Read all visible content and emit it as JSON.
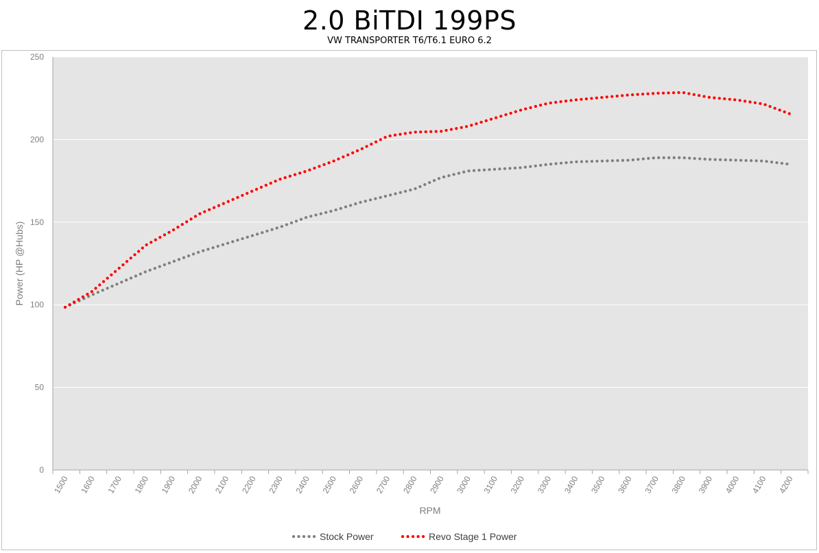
{
  "chart_data": {
    "type": "line",
    "title": "2.0 BiTDI 199PS",
    "subtitle": "VW TRANSPORTER T6/T6.1 EURO 6.2",
    "xlabel": "RPM",
    "ylabel": "Power (HP @Hubs)",
    "xlim": [
      1500,
      4200
    ],
    "ylim": [
      0,
      250
    ],
    "x_ticks": [
      1500,
      1600,
      1700,
      1800,
      1900,
      2000,
      2100,
      2200,
      2300,
      2400,
      2500,
      2600,
      2700,
      2800,
      2900,
      3000,
      3100,
      3200,
      3300,
      3400,
      3500,
      3600,
      3700,
      3800,
      3900,
      4000,
      4100,
      4200
    ],
    "y_ticks": [
      0,
      50,
      100,
      150,
      200,
      250
    ],
    "grid": true,
    "legend": "bottom",
    "x": [
      1500,
      1600,
      1700,
      1800,
      1900,
      2000,
      2100,
      2200,
      2300,
      2400,
      2500,
      2600,
      2700,
      2800,
      2900,
      3000,
      3100,
      3200,
      3300,
      3400,
      3500,
      3600,
      3700,
      3800,
      3900,
      4000,
      4100,
      4200
    ],
    "series": [
      {
        "name": "Stock Power",
        "color": "#7f7f7f",
        "values": [
          98.5,
          106,
          113,
          120,
          126,
          132,
          137,
          142,
          147,
          153,
          157,
          162,
          166,
          170,
          177,
          181,
          182,
          183,
          185,
          186.5,
          187,
          187.5,
          189,
          189,
          188,
          187.5,
          187,
          185
        ]
      },
      {
        "name": "Revo Stage 1 Power",
        "color": "#ff0000",
        "values": [
          98.5,
          108,
          122,
          136,
          145,
          155,
          162,
          169,
          176,
          181,
          187,
          194,
          202,
          204.5,
          205,
          208,
          213,
          218,
          222,
          224,
          225.5,
          227,
          228,
          228.5,
          225.5,
          224,
          221.5,
          215.5
        ]
      }
    ]
  }
}
